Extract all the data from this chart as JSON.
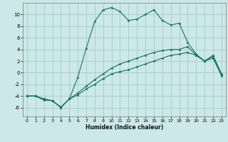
{
  "title": "",
  "xlabel": "Humidex (Indice chaleur)",
  "background_color": "#cce8e8",
  "grid_color": "#aacece",
  "line_color": "#1a7068",
  "line1_x": [
    0,
    1,
    2,
    3,
    4,
    5,
    6,
    7,
    8,
    9,
    10,
    11,
    12,
    13,
    14,
    15,
    16,
    17,
    18,
    19,
    20,
    21,
    22,
    23
  ],
  "line1_y": [
    -4,
    -4,
    -4.5,
    -4.8,
    -5.9,
    -4.5,
    -3.5,
    -2.3,
    -1.2,
    -0.2,
    0.8,
    1.5,
    2.0,
    2.5,
    3.0,
    3.5,
    3.8,
    4.0,
    4.0,
    4.5,
    3.0,
    2.0,
    2.8,
    -0.3
  ],
  "line2_x": [
    0,
    1,
    2,
    3,
    4,
    5,
    6,
    7,
    8,
    9,
    10,
    11,
    12,
    13,
    14,
    15,
    16,
    17,
    18,
    19,
    20,
    21,
    22,
    23
  ],
  "line2_y": [
    -4,
    -4,
    -4.5,
    -4.8,
    -5.9,
    -4.5,
    -3.8,
    -2.8,
    -2.0,
    -1.0,
    -0.2,
    0.2,
    0.5,
    1.0,
    1.5,
    2.0,
    2.5,
    3.0,
    3.2,
    3.5,
    3.0,
    2.0,
    2.5,
    -0.5
  ],
  "line3_x": [
    0,
    1,
    2,
    3,
    4,
    5,
    6,
    7,
    8,
    9,
    10,
    11,
    12,
    13,
    14,
    15,
    16,
    17,
    18,
    19,
    20,
    21,
    22,
    23
  ],
  "line3_y": [
    -4,
    -4,
    -4.7,
    -4.8,
    -6.0,
    -4.5,
    -0.8,
    4.2,
    8.8,
    10.8,
    11.2,
    10.5,
    9.0,
    9.2,
    10.0,
    10.8,
    9.0,
    8.2,
    8.5,
    5.2,
    3.2,
    2.0,
    3.0,
    -0.2
  ],
  "ylim": [
    -7.5,
    12
  ],
  "xlim": [
    -0.5,
    23.5
  ],
  "yticks": [
    -6,
    -4,
    -2,
    0,
    2,
    4,
    6,
    8,
    10
  ],
  "xticks": [
    0,
    1,
    2,
    3,
    4,
    5,
    6,
    7,
    8,
    9,
    10,
    11,
    12,
    13,
    14,
    15,
    16,
    17,
    18,
    19,
    20,
    21,
    22,
    23
  ]
}
